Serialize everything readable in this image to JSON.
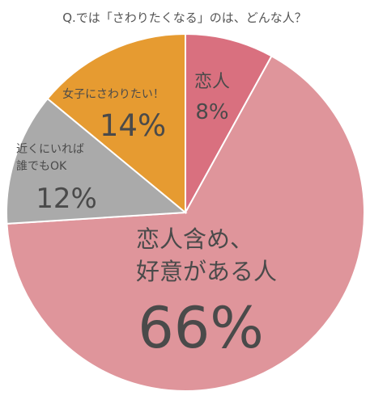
{
  "chart_data": {
    "type": "pie",
    "title": "Q.では「さわりたくなる」のは、どんな人？",
    "slices": [
      {
        "label": "恋人",
        "value": 8,
        "value_text": "8%",
        "color": "#d9707f"
      },
      {
        "label": "恋人含め、好意がある人",
        "label_lines": [
          "恋人含め、",
          "好意がある人"
        ],
        "value": 66,
        "value_text": "66%",
        "color": "#df959b"
      },
      {
        "label": "近くにいれば誰でもOK",
        "label_lines": [
          "近くにいれば",
          "誰でもOK"
        ],
        "value": 12,
        "value_text": "12%",
        "color": "#aaaaaa"
      },
      {
        "label": "女子にさわりたい！",
        "value": 14,
        "value_text": "14%",
        "color": "#e69b31"
      }
    ]
  }
}
